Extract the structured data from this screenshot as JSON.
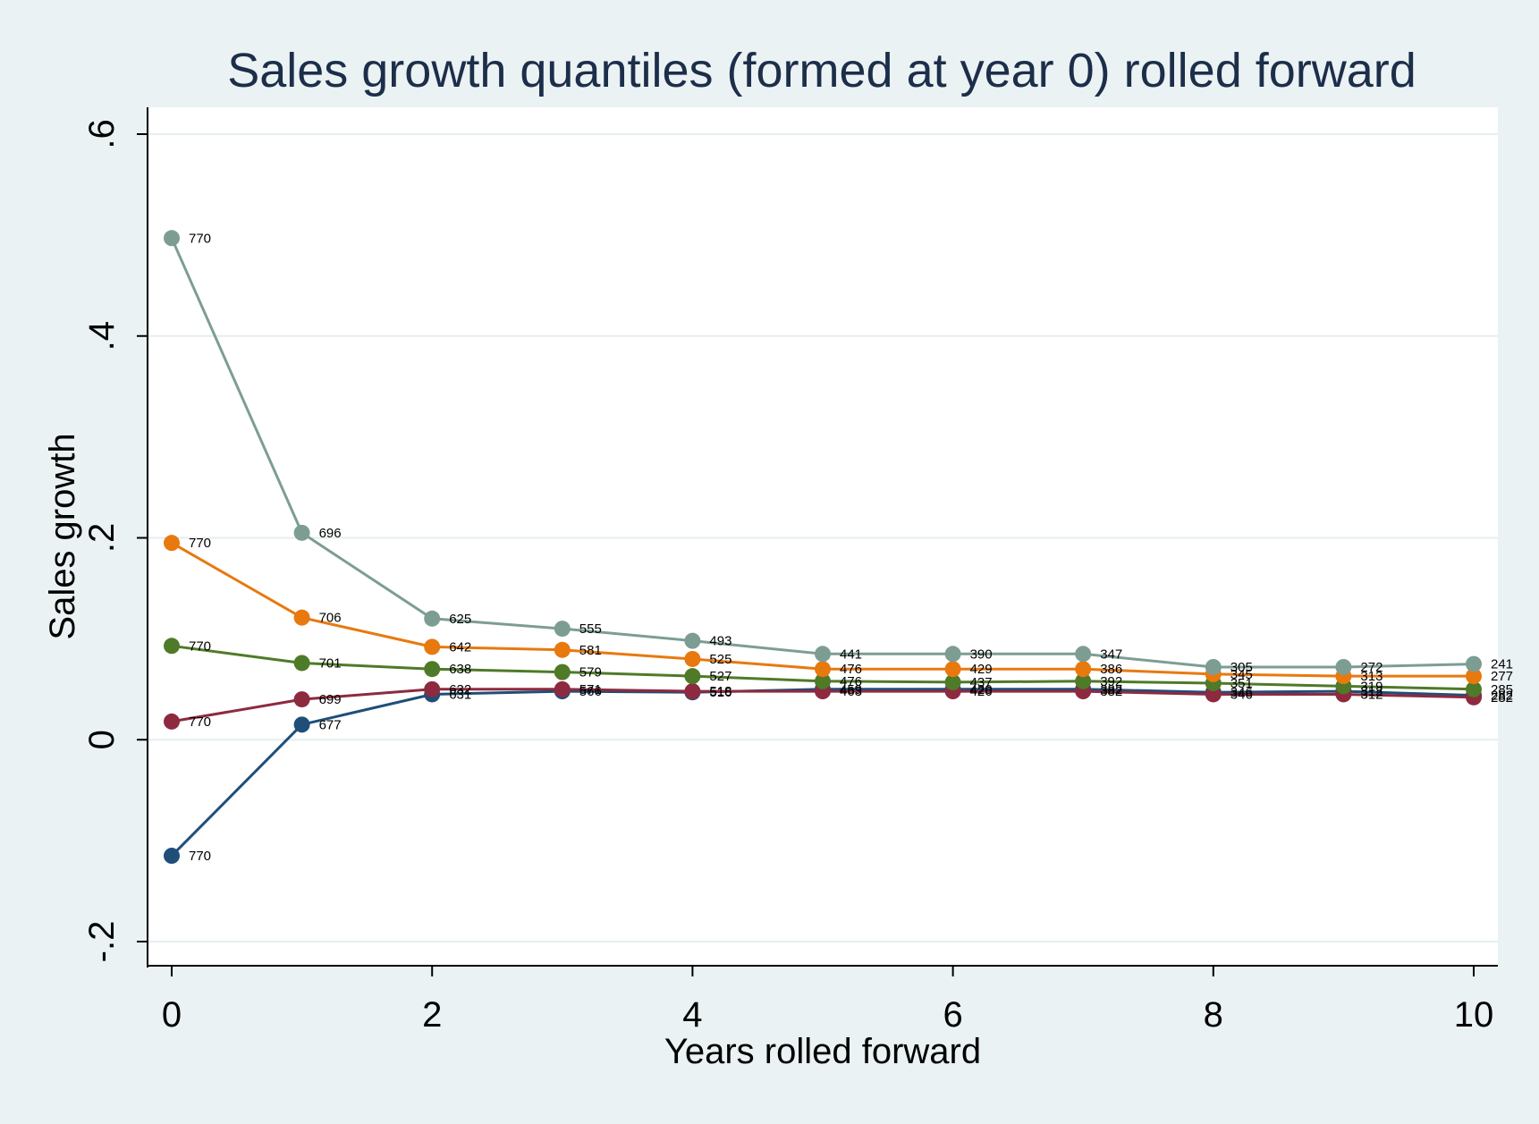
{
  "chart_data": {
    "type": "line",
    "title": "Sales growth quantiles (formed at year 0) rolled forward",
    "xlabel": "Years rolled forward",
    "ylabel": "Sales growth",
    "xlim": [
      0,
      10
    ],
    "ylim": [
      -0.2,
      0.6
    ],
    "x_ticks": [
      0,
      2,
      4,
      6,
      8,
      10
    ],
    "x_tick_labels": [
      "0",
      "2",
      "4",
      "6",
      "8",
      "10"
    ],
    "y_ticks": [
      -0.2,
      0,
      0.2,
      0.4,
      0.6
    ],
    "y_tick_labels": [
      "-.2",
      "0",
      ".2",
      ".4",
      ".6"
    ],
    "grid": true,
    "legend": "none",
    "x": [
      0,
      1,
      2,
      3,
      4,
      5,
      6,
      7,
      8,
      9,
      10
    ],
    "series": [
      {
        "color": "#1f4e79",
        "values": [
          -0.115,
          0.015,
          0.045,
          0.048,
          0.047,
          0.05,
          0.05,
          0.05,
          0.047,
          0.048,
          0.044
        ],
        "labels": [
          "770",
          "677",
          "631",
          "566",
          "516",
          "459",
          "420",
          "382",
          "346",
          "312",
          "282"
        ]
      },
      {
        "color": "#8e2a3f",
        "values": [
          0.018,
          0.04,
          0.05,
          0.05,
          0.048,
          0.048,
          0.048,
          0.048,
          0.045,
          0.045,
          0.042
        ],
        "labels": [
          "770",
          "699",
          "632",
          "571",
          "518",
          "463",
          "426",
          "382",
          "346",
          "312",
          "282"
        ]
      },
      {
        "color": "#4f7a28",
        "values": [
          0.093,
          0.076,
          0.07,
          0.067,
          0.063,
          0.058,
          0.057,
          0.058,
          0.056,
          0.053,
          0.05
        ],
        "labels": [
          "770",
          "701",
          "638",
          "579",
          "527",
          "476",
          "437",
          "392",
          "351",
          "319",
          "285"
        ]
      },
      {
        "color": "#e8790f",
        "values": [
          0.195,
          0.121,
          0.092,
          0.089,
          0.08,
          0.07,
          0.07,
          0.07,
          0.065,
          0.063,
          0.063
        ],
        "labels": [
          "770",
          "706",
          "642",
          "581",
          "525",
          "476",
          "429",
          "386",
          "345",
          "313",
          "277"
        ]
      },
      {
        "color": "#7d9d93",
        "values": [
          0.497,
          0.205,
          0.12,
          0.11,
          0.098,
          0.085,
          0.085,
          0.085,
          0.072,
          0.072,
          0.075
        ],
        "labels": [
          "770",
          "696",
          "625",
          "555",
          "493",
          "441",
          "390",
          "347",
          "305",
          "272",
          "241"
        ]
      }
    ]
  }
}
